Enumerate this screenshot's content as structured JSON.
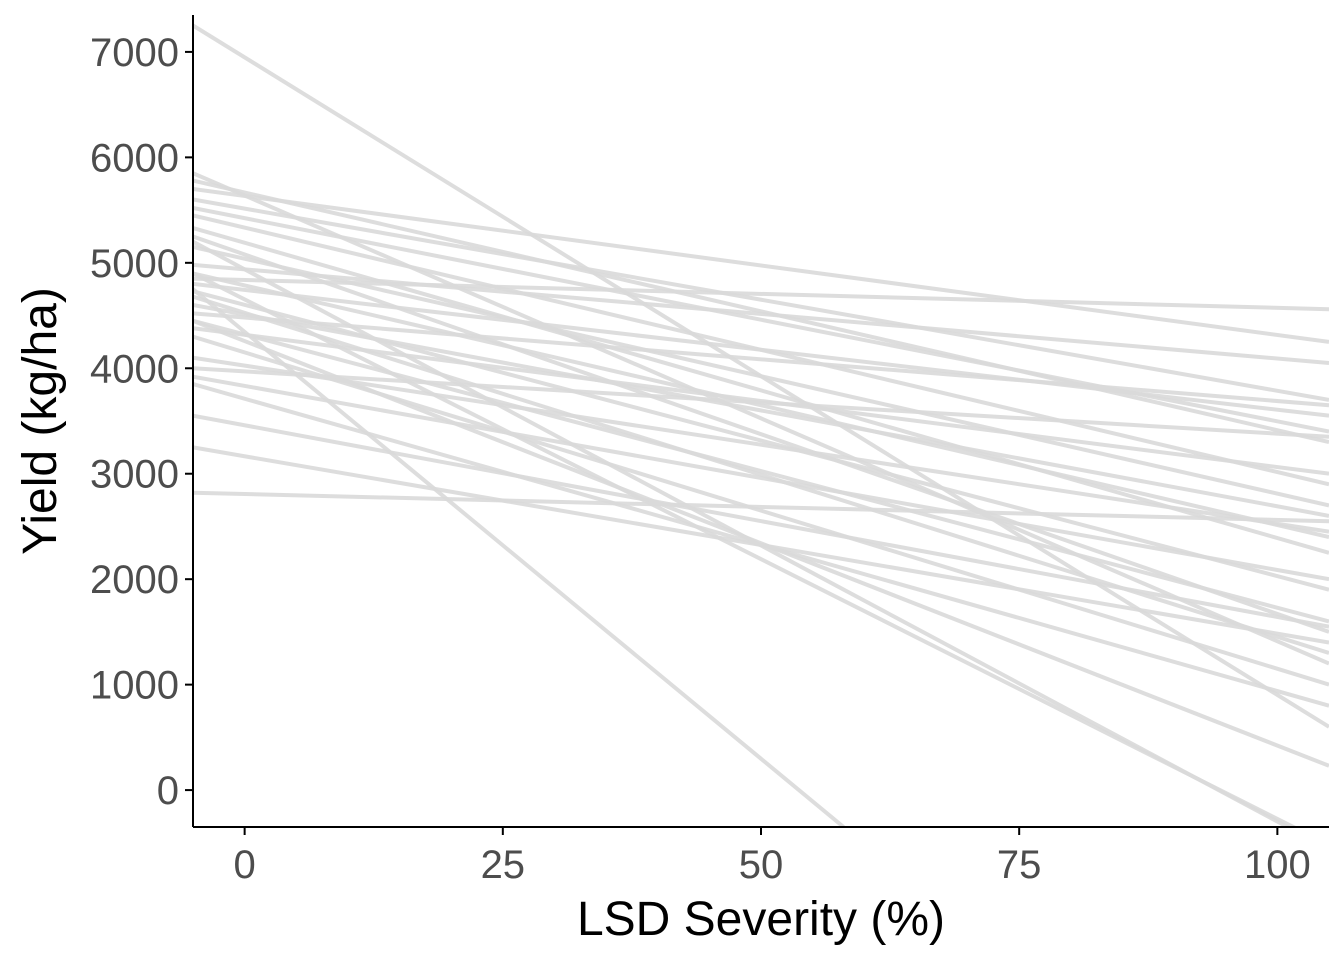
{
  "chart_data": {
    "type": "line",
    "title": "",
    "xlabel": "LSD Severity (%)",
    "ylabel": "Yield (kg/ha)",
    "xlim": [
      -5,
      105
    ],
    "ylim": [
      -350,
      7350
    ],
    "x_ticks": [
      0,
      25,
      50,
      75,
      100
    ],
    "y_ticks": [
      0,
      1000,
      2000,
      3000,
      4000,
      5000,
      6000,
      7000
    ],
    "x_tick_labels": [
      "0",
      "25",
      "50",
      "75",
      "100"
    ],
    "y_tick_labels": [
      "0",
      "1000",
      "2000",
      "3000",
      "4000",
      "5000",
      "6000",
      "7000"
    ],
    "grid": false,
    "legend": "none",
    "line_color": "#d9d9d9",
    "series": [
      {
        "x": [
          -5,
          105
        ],
        "values": [
          7250,
          600
        ]
      },
      {
        "x": [
          -5,
          105
        ],
        "values": [
          5850,
          1200
        ]
      },
      {
        "x": [
          -5,
          105
        ],
        "values": [
          5780,
          3300
        ]
      },
      {
        "x": [
          -5,
          105
        ],
        "values": [
          5700,
          4250
        ]
      },
      {
        "x": [
          -5,
          105
        ],
        "values": [
          5600,
          3700
        ]
      },
      {
        "x": [
          -5,
          105
        ],
        "values": [
          5520,
          3400
        ]
      },
      {
        "x": [
          -5,
          105
        ],
        "values": [
          5450,
          2900
        ]
      },
      {
        "x": [
          -5,
          105
        ],
        "values": [
          5330,
          2250
        ]
      },
      {
        "x": [
          -5,
          105
        ],
        "values": [
          5250,
          1500
        ]
      },
      {
        "x": [
          -5,
          105
        ],
        "values": [
          5150,
          2700
        ]
      },
      {
        "x": [
          -5,
          105
        ],
        "values": [
          4980,
          4050
        ]
      },
      {
        "x": [
          -5,
          105
        ],
        "values": [
          4900,
          2400
        ]
      },
      {
        "x": [
          -5,
          105
        ],
        "values": [
          4850,
          4560
        ]
      },
      {
        "x": [
          -5,
          105
        ],
        "values": [
          4800,
          3550
        ]
      },
      {
        "x": [
          -5,
          105
        ],
        "values": [
          4730,
          1900
        ]
      },
      {
        "x": [
          -5,
          105
        ],
        "values": [
          4680,
          1300
        ]
      },
      {
        "x": [
          -5,
          105
        ],
        "values": [
          4600,
          2600
        ]
      },
      {
        "x": [
          -5,
          105
        ],
        "values": [
          4520,
          3650
        ]
      },
      {
        "x": [
          -5,
          105
        ],
        "values": [
          4450,
          1600
        ]
      },
      {
        "x": [
          -5,
          105
        ],
        "values": [
          4380,
          3000
        ]
      },
      {
        "x": [
          -5,
          105
        ],
        "values": [
          4300,
          1000
        ]
      },
      {
        "x": [
          -5,
          105
        ],
        "values": [
          4100,
          2450
        ]
      },
      {
        "x": [
          -5,
          105
        ],
        "values": [
          4000,
          3350
        ]
      },
      {
        "x": [
          -5,
          105
        ],
        "values": [
          3920,
          2000
        ]
      },
      {
        "x": [
          -5,
          105
        ],
        "values": [
          3850,
          800
        ]
      },
      {
        "x": [
          -5,
          105
        ],
        "values": [
          3550,
          1550
        ]
      },
      {
        "x": [
          -5,
          105
        ],
        "values": [
          3250,
          1400
        ]
      },
      {
        "x": [
          -5,
          105
        ],
        "values": [
          2820,
          2550
        ]
      },
      {
        "x": [
          -5,
          105
        ],
        "values": [
          5200,
          -560
        ]
      },
      {
        "x": [
          -5,
          105
        ],
        "values": [
          4900,
          -520
        ]
      },
      {
        "x": [
          -5,
          58
        ],
        "values": [
          4750,
          -350
        ]
      },
      {
        "x": [
          -5,
          105
        ],
        "values": [
          4450,
          230
        ]
      }
    ]
  }
}
